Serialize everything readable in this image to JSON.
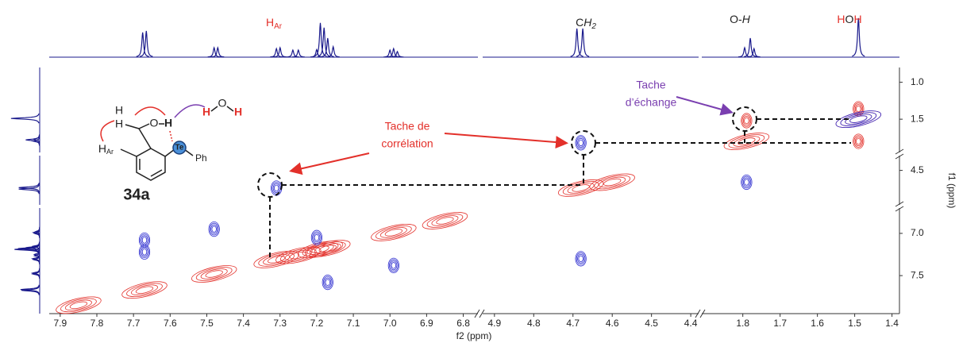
{
  "chart_data": {
    "type": "nmr-2d",
    "x_label": "f2 (ppm)",
    "y_label": "f1 (ppm)",
    "x_segments": [
      {
        "xlim": [
          7.93,
          6.76
        ],
        "xticks": [
          7.9,
          7.8,
          7.7,
          7.6,
          7.5,
          7.4,
          7.3,
          7.2,
          7.1,
          {
            "value": 7,
            "label": "7.0"
          },
          6.9,
          6.8
        ]
      },
      {
        "xlim": [
          4.93,
          4.38
        ],
        "xticks": [
          4.9,
          4.8,
          4.7,
          4.6,
          4.5,
          4.4
        ]
      },
      {
        "xlim": [
          1.91,
          1.38
        ],
        "xticks": [
          1.8,
          1.7,
          1.6,
          1.5,
          1.4
        ]
      }
    ],
    "y_segments": [
      {
        "ylim": [
          0.8,
          1.95
        ],
        "yticks": [
          {
            "value": 1,
            "label": "1.0"
          },
          1.5
        ]
      },
      {
        "ylim": [
          4.35,
          4.85
        ],
        "yticks": [
          4.5
        ]
      },
      {
        "ylim": [
          6.7,
          7.95
        ],
        "yticks": [
          {
            "value": 7,
            "label": "7.0"
          },
          7.5
        ]
      }
    ],
    "projection": {
      "color": "#1a1a8c",
      "ylim": [
        0,
        1
      ],
      "x": [
        7.675,
        7.665,
        7.48,
        7.47,
        7.31,
        7.3,
        7.265,
        7.25,
        7.2,
        7.19,
        7.18,
        7.17,
        7.155,
        7.0,
        6.99,
        6.98,
        4.69,
        4.675,
        1.795,
        1.78,
        1.77,
        1.49
      ],
      "values": [
        0.52,
        0.55,
        0.2,
        0.2,
        0.18,
        0.2,
        0.15,
        0.15,
        0.16,
        0.72,
        0.62,
        0.4,
        0.22,
        0.15,
        0.18,
        0.12,
        0.6,
        0.6,
        0.2,
        0.4,
        0.18,
        0.82
      ]
    },
    "series": [
      {
        "color": "#e3302a",
        "x": [
          7.85,
          7.67,
          7.48,
          7.31,
          7.25,
          7.19,
          7.17,
          6.99,
          6.85,
          4.68,
          4.6,
          1.79,
          1.79,
          1.49,
          1.49,
          1.49
        ],
        "y": [
          7.85,
          7.67,
          7.48,
          7.31,
          7.26,
          7.19,
          7.18,
          6.99,
          6.85,
          4.68,
          4.62,
          1.52,
          1.8,
          1.5,
          1.8,
          1.36
        ]
      },
      {
        "color": "#2f2fd0",
        "x": [
          7.67,
          7.67,
          7.48,
          7.31,
          7.2,
          7.17,
          6.99,
          4.68,
          4.68,
          1.79,
          1.49
        ],
        "y": [
          7.08,
          7.22,
          6.95,
          4.68,
          7.05,
          7.58,
          7.38,
          1.82,
          7.3,
          4.62,
          1.5
        ]
      }
    ],
    "annotations": {
      "h_ar": {
        "main": "H",
        "sub": "Ar"
      },
      "ch2": {
        "main": "C",
        "italic": "H",
        "sub": "2"
      },
      "oh": {
        "main": "O-",
        "italic": "H"
      },
      "hoh": [
        "H",
        "O",
        "H"
      ],
      "correlation": [
        "Tache de",
        "corrélation"
      ],
      "exchange": [
        "Tache",
        "d’échange"
      ]
    },
    "molecule": {
      "label": "34a",
      "atoms": [
        "H",
        "H",
        "O",
        "H",
        "H",
        "Ar",
        "Te",
        "Ph"
      ],
      "water": [
        "H",
        "O",
        "H"
      ]
    }
  }
}
